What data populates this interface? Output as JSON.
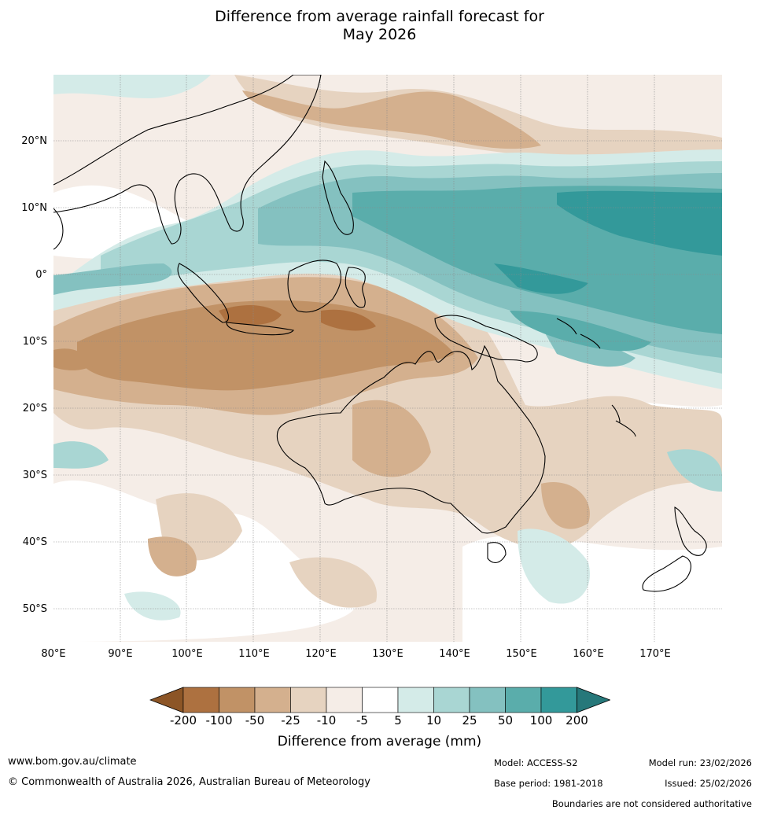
{
  "title_line1": "Difference from average rainfall forecast for",
  "title_line2": "May 2026",
  "lat_labels": [
    "20°N",
    "10°N",
    "0°",
    "10°S",
    "20°S",
    "30°S",
    "40°S",
    "50°S"
  ],
  "lon_labels": [
    "80°E",
    "90°E",
    "100°E",
    "110°E",
    "120°E",
    "130°E",
    "140°E",
    "150°E",
    "160°E",
    "170°E"
  ],
  "colorbar": {
    "ticks": [
      "-200",
      "-100",
      "-50",
      "-25",
      "-10",
      "-5",
      "5",
      "10",
      "25",
      "50",
      "100",
      "200"
    ],
    "colors": [
      "#8c5526",
      "#ad7140",
      "#c19266",
      "#d4b08e",
      "#e6d3c0",
      "#f5ede7",
      "#ffffff",
      "#d4ebe8",
      "#a9d6d3",
      "#84c1c0",
      "#5aadab",
      "#33999a",
      "#26787a"
    ],
    "label": "Difference from average (mm)"
  },
  "footer": {
    "url": "www.bom.gov.au/climate",
    "copyright": "© Commonwealth of Australia 2026, Australian Bureau of Meteorology",
    "model": "Model: ACCESS-S2",
    "base_period": "Base period: 1981-2018",
    "model_run": "Model run: 23/02/2026",
    "issued": "Issued: 25/02/2026",
    "boundaries": "Boundaries are not considered authoritative"
  }
}
